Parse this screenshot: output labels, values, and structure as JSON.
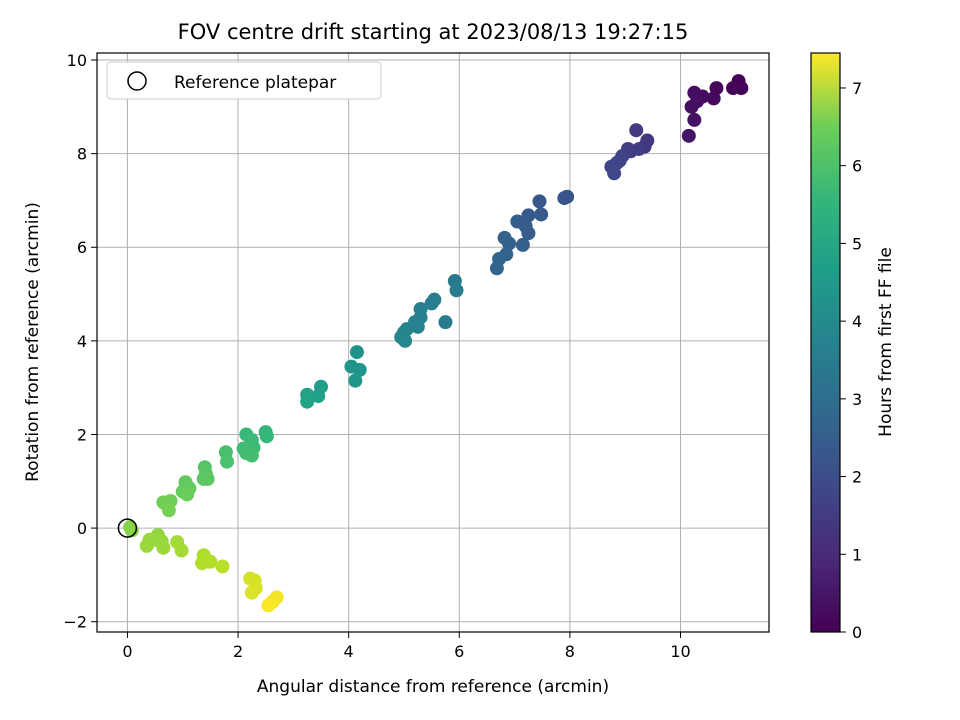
{
  "chart_data": {
    "type": "scatter",
    "title": "FOV centre drift starting at 2023/08/13 19:27:15",
    "xlabel": "Angular distance from reference (arcmin)",
    "ylabel": "Rotation from reference (arcmin)",
    "xlim": [
      -0.55,
      11.6
    ],
    "ylim": [
      -2.22,
      10.15
    ],
    "xticks": [
      0,
      2,
      4,
      6,
      8,
      10
    ],
    "yticks": [
      -2,
      0,
      2,
      4,
      6,
      8,
      10
    ],
    "grid": true,
    "legend": {
      "position": "top-left",
      "entries": [
        "Reference platepar"
      ]
    },
    "reference_point": {
      "x": 0,
      "y": 0
    },
    "colorbar": {
      "label": "Hours from first FF file",
      "min": 0,
      "max": 7.45,
      "ticks": [
        0,
        1,
        2,
        3,
        4,
        5,
        6,
        7
      ],
      "colormap": "viridis"
    },
    "points": [
      {
        "x": 11.05,
        "y": 9.55,
        "h": 0.0
      },
      {
        "x": 11.1,
        "y": 9.4,
        "h": 0.05
      },
      {
        "x": 10.95,
        "y": 9.4,
        "h": 0.08
      },
      {
        "x": 10.65,
        "y": 9.4,
        "h": 0.12
      },
      {
        "x": 10.6,
        "y": 9.18,
        "h": 0.15
      },
      {
        "x": 10.4,
        "y": 9.22,
        "h": 0.2
      },
      {
        "x": 10.25,
        "y": 9.3,
        "h": 0.25
      },
      {
        "x": 10.3,
        "y": 9.12,
        "h": 0.28
      },
      {
        "x": 10.2,
        "y": 9.0,
        "h": 0.32
      },
      {
        "x": 10.25,
        "y": 8.72,
        "h": 0.36
      },
      {
        "x": 10.15,
        "y": 8.38,
        "h": 0.4
      },
      {
        "x": 9.4,
        "y": 8.28,
        "h": 1.2
      },
      {
        "x": 9.35,
        "y": 8.15,
        "h": 1.25
      },
      {
        "x": 9.2,
        "y": 8.5,
        "h": 1.28
      },
      {
        "x": 9.25,
        "y": 8.1,
        "h": 1.32
      },
      {
        "x": 9.1,
        "y": 8.05,
        "h": 1.36
      },
      {
        "x": 9.05,
        "y": 8.1,
        "h": 1.4
      },
      {
        "x": 8.95,
        "y": 7.95,
        "h": 1.45
      },
      {
        "x": 8.85,
        "y": 7.8,
        "h": 1.5
      },
      {
        "x": 8.9,
        "y": 7.85,
        "h": 1.52
      },
      {
        "x": 8.75,
        "y": 7.72,
        "h": 1.56
      },
      {
        "x": 8.8,
        "y": 7.58,
        "h": 1.6
      },
      {
        "x": 7.95,
        "y": 7.08,
        "h": 1.95
      },
      {
        "x": 7.9,
        "y": 7.05,
        "h": 1.98
      },
      {
        "x": 7.45,
        "y": 6.98,
        "h": 2.05
      },
      {
        "x": 7.48,
        "y": 6.7,
        "h": 2.08
      },
      {
        "x": 7.25,
        "y": 6.68,
        "h": 2.12
      },
      {
        "x": 7.2,
        "y": 6.45,
        "h": 2.15
      },
      {
        "x": 7.25,
        "y": 6.3,
        "h": 2.18
      },
      {
        "x": 7.05,
        "y": 6.55,
        "h": 2.22
      },
      {
        "x": 7.15,
        "y": 6.05,
        "h": 2.25
      },
      {
        "x": 6.9,
        "y": 6.08,
        "h": 2.28
      },
      {
        "x": 6.82,
        "y": 6.2,
        "h": 2.32
      },
      {
        "x": 6.85,
        "y": 5.85,
        "h": 2.36
      },
      {
        "x": 6.72,
        "y": 5.75,
        "h": 2.4
      },
      {
        "x": 6.68,
        "y": 5.55,
        "h": 2.44
      },
      {
        "x": 5.92,
        "y": 5.28,
        "h": 3.05
      },
      {
        "x": 5.95,
        "y": 5.08,
        "h": 3.08
      },
      {
        "x": 5.75,
        "y": 4.4,
        "h": 3.12
      },
      {
        "x": 5.55,
        "y": 4.88,
        "h": 3.15
      },
      {
        "x": 5.5,
        "y": 4.8,
        "h": 3.18
      },
      {
        "x": 5.3,
        "y": 4.68,
        "h": 3.22
      },
      {
        "x": 5.3,
        "y": 4.5,
        "h": 3.25
      },
      {
        "x": 5.25,
        "y": 4.3,
        "h": 3.28
      },
      {
        "x": 5.2,
        "y": 4.4,
        "h": 3.32
      },
      {
        "x": 5.05,
        "y": 4.25,
        "h": 3.35
      },
      {
        "x": 5.0,
        "y": 4.18,
        "h": 3.38
      },
      {
        "x": 4.95,
        "y": 4.08,
        "h": 3.42
      },
      {
        "x": 5.02,
        "y": 4.0,
        "h": 3.45
      },
      {
        "x": 4.15,
        "y": 3.76,
        "h": 3.8
      },
      {
        "x": 4.2,
        "y": 3.38,
        "h": 3.85
      },
      {
        "x": 4.05,
        "y": 3.45,
        "h": 3.88
      },
      {
        "x": 4.12,
        "y": 3.15,
        "h": 3.92
      },
      {
        "x": 3.5,
        "y": 3.02,
        "h": 4.15
      },
      {
        "x": 3.45,
        "y": 2.82,
        "h": 4.2
      },
      {
        "x": 3.25,
        "y": 2.85,
        "h": 4.25
      },
      {
        "x": 3.25,
        "y": 2.7,
        "h": 4.3
      },
      {
        "x": 2.5,
        "y": 2.05,
        "h": 4.9
      },
      {
        "x": 2.52,
        "y": 1.96,
        "h": 4.95
      },
      {
        "x": 2.15,
        "y": 2.0,
        "h": 5.0
      },
      {
        "x": 2.25,
        "y": 1.88,
        "h": 5.05
      },
      {
        "x": 2.28,
        "y": 1.72,
        "h": 5.08
      },
      {
        "x": 2.1,
        "y": 1.7,
        "h": 5.12
      },
      {
        "x": 2.15,
        "y": 1.6,
        "h": 5.15
      },
      {
        "x": 2.25,
        "y": 1.55,
        "h": 5.18
      },
      {
        "x": 1.78,
        "y": 1.62,
        "h": 5.25
      },
      {
        "x": 1.8,
        "y": 1.42,
        "h": 5.28
      },
      {
        "x": 1.4,
        "y": 1.3,
        "h": 5.45
      },
      {
        "x": 1.42,
        "y": 1.15,
        "h": 5.48
      },
      {
        "x": 1.38,
        "y": 1.05,
        "h": 5.52
      },
      {
        "x": 1.45,
        "y": 1.05,
        "h": 5.55
      },
      {
        "x": 1.05,
        "y": 0.98,
        "h": 5.62
      },
      {
        "x": 1.12,
        "y": 0.85,
        "h": 5.65
      },
      {
        "x": 1.0,
        "y": 0.78,
        "h": 5.68
      },
      {
        "x": 1.08,
        "y": 0.72,
        "h": 5.72
      },
      {
        "x": 0.78,
        "y": 0.58,
        "h": 5.8
      },
      {
        "x": 0.65,
        "y": 0.55,
        "h": 5.82
      },
      {
        "x": 0.72,
        "y": 0.48,
        "h": 5.85
      },
      {
        "x": 0.75,
        "y": 0.38,
        "h": 5.88
      },
      {
        "x": 0.05,
        "y": 0.02,
        "h": 6.05
      },
      {
        "x": 0.08,
        "y": -0.05,
        "h": 6.1
      },
      {
        "x": 0.55,
        "y": -0.15,
        "h": 6.2
      },
      {
        "x": 0.5,
        "y": -0.25,
        "h": 6.22
      },
      {
        "x": 0.62,
        "y": -0.28,
        "h": 6.25
      },
      {
        "x": 0.4,
        "y": -0.25,
        "h": 6.28
      },
      {
        "x": 0.35,
        "y": -0.38,
        "h": 6.3
      },
      {
        "x": 0.65,
        "y": -0.42,
        "h": 6.32
      },
      {
        "x": 0.9,
        "y": -0.3,
        "h": 6.4
      },
      {
        "x": 0.98,
        "y": -0.48,
        "h": 6.42
      },
      {
        "x": 1.38,
        "y": -0.58,
        "h": 6.55
      },
      {
        "x": 1.35,
        "y": -0.75,
        "h": 6.58
      },
      {
        "x": 1.5,
        "y": -0.72,
        "h": 6.62
      },
      {
        "x": 1.72,
        "y": -0.82,
        "h": 6.68
      },
      {
        "x": 2.22,
        "y": -1.08,
        "h": 6.95
      },
      {
        "x": 2.3,
        "y": -1.12,
        "h": 6.98
      },
      {
        "x": 2.32,
        "y": -1.28,
        "h": 7.02
      },
      {
        "x": 2.25,
        "y": -1.38,
        "h": 7.05
      },
      {
        "x": 2.7,
        "y": -1.48,
        "h": 7.3
      },
      {
        "x": 2.62,
        "y": -1.58,
        "h": 7.35
      },
      {
        "x": 2.55,
        "y": -1.65,
        "h": 7.42
      }
    ]
  }
}
